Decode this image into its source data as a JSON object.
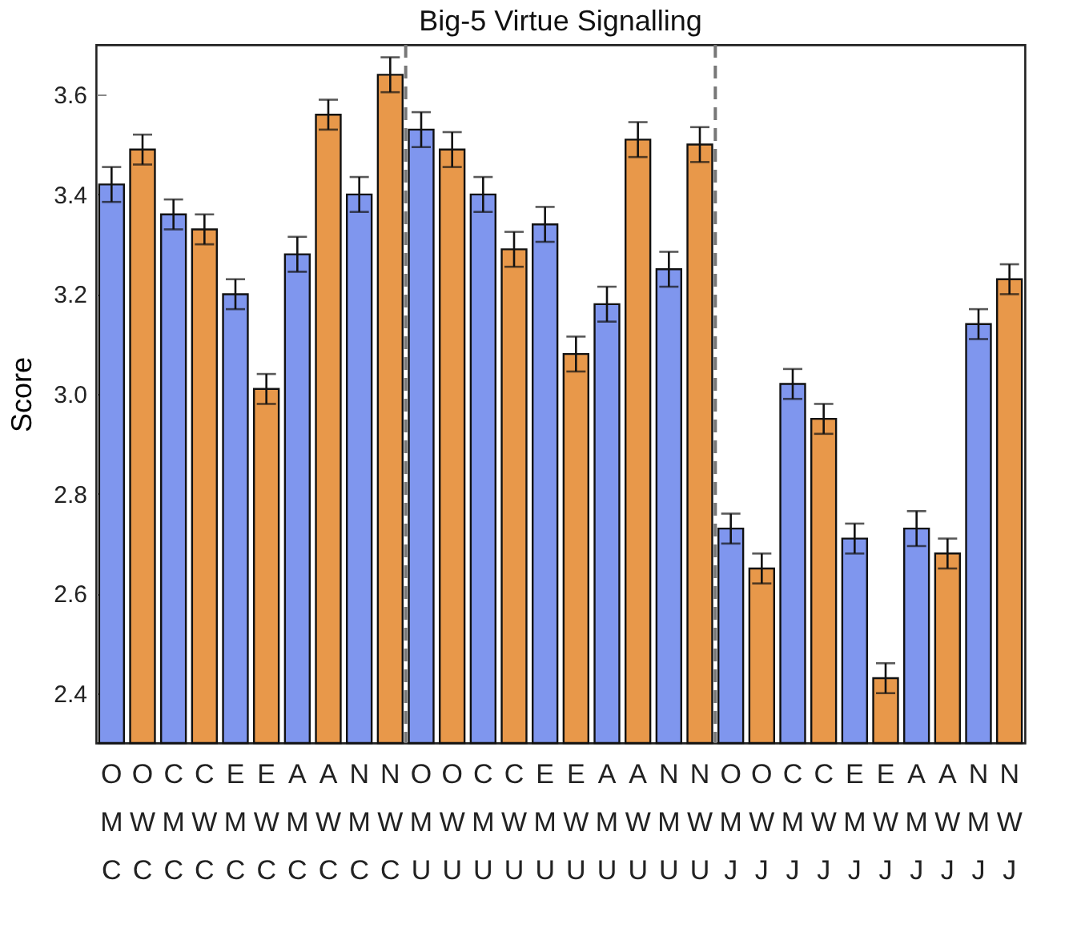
{
  "chart_data": {
    "type": "bar",
    "title": "Big-5 Virtue Signalling",
    "ylabel": "Score",
    "categories": [
      "O\nM\nC",
      "O\nW\nC",
      "C\nM\nC",
      "C\nW\nC",
      "E\nM\nC",
      "E\nW\nC",
      "A\nM\nC",
      "A\nW\nC",
      "N\nM\nC",
      "N\nW\nC",
      "O\nM\nU",
      "O\nW\nU",
      "C\nM\nU",
      "C\nW\nU",
      "E\nM\nU",
      "E\nW\nU",
      "A\nM\nU",
      "A\nW\nU",
      "N\nM\nU",
      "N\nW\nU",
      "O\nM\nJ",
      "O\nW\nJ",
      "C\nM\nJ",
      "C\nW\nJ",
      "E\nM\nJ",
      "E\nW\nJ",
      "A\nM\nJ",
      "A\nW\nJ",
      "N\nM\nJ",
      "N\nW\nJ"
    ],
    "values": [
      3.42,
      3.49,
      3.36,
      3.33,
      3.2,
      3.01,
      3.28,
      3.56,
      3.4,
      3.64,
      3.53,
      3.49,
      3.4,
      3.29,
      3.34,
      3.08,
      3.18,
      3.51,
      3.25,
      3.5,
      2.73,
      2.65,
      3.02,
      2.95,
      2.71,
      2.43,
      2.73,
      2.68,
      3.14,
      3.23
    ],
    "errors": [
      0.035,
      0.03,
      0.03,
      0.03,
      0.03,
      0.03,
      0.035,
      0.03,
      0.035,
      0.035,
      0.035,
      0.035,
      0.035,
      0.035,
      0.035,
      0.035,
      0.035,
      0.035,
      0.035,
      0.035,
      0.03,
      0.03,
      0.03,
      0.03,
      0.03,
      0.03,
      0.035,
      0.03,
      0.03,
      0.03
    ],
    "colors": [
      "#7f96ee",
      "#e8984a",
      "#7f96ee",
      "#e8984a",
      "#7f96ee",
      "#e8984a",
      "#7f96ee",
      "#e8984a",
      "#7f96ee",
      "#e8984a",
      "#7f96ee",
      "#e8984a",
      "#7f96ee",
      "#e8984a",
      "#7f96ee",
      "#e8984a",
      "#7f96ee",
      "#e8984a",
      "#7f96ee",
      "#e8984a",
      "#7f96ee",
      "#e8984a",
      "#7f96ee",
      "#e8984a",
      "#7f96ee",
      "#e8984a",
      "#7f96ee",
      "#e8984a",
      "#7f96ee",
      "#e8984a"
    ],
    "ylim": [
      2.3,
      3.7
    ],
    "yticks": [
      2.4,
      2.6,
      2.8,
      {
        "value": 3,
        "label": "3.0"
      },
      3.2,
      3.4,
      3.6
    ]
  }
}
